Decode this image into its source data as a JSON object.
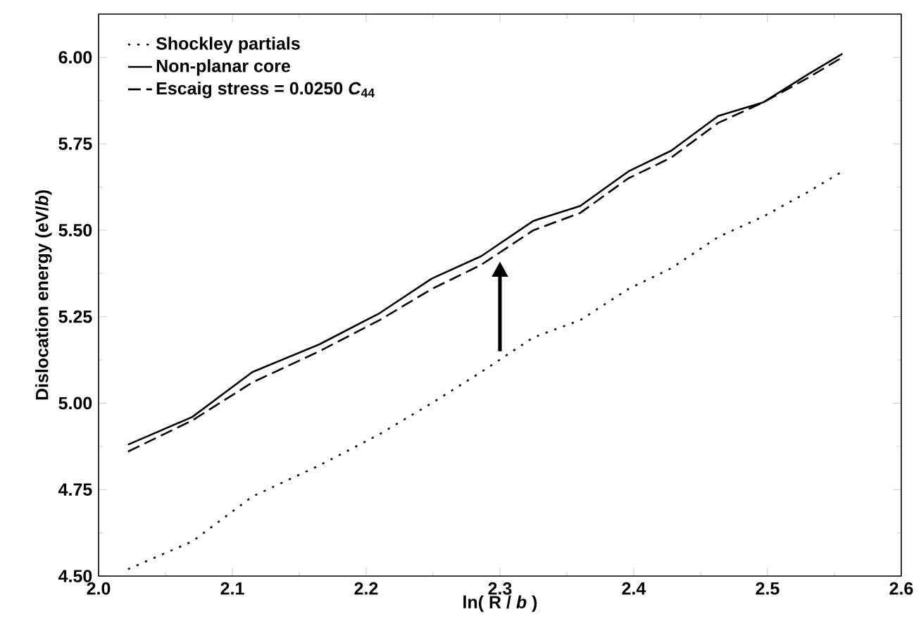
{
  "chart_data": {
    "type": "line",
    "xlabel": "ln( R / *b* )",
    "ylabel": "Dislocation energy (eV/*b*)",
    "x": [
      2.022,
      2.07,
      2.115,
      2.165,
      2.21,
      2.249,
      2.286,
      2.325,
      2.36,
      2.396,
      2.428,
      2.463,
      2.497,
      2.53,
      2.556
    ],
    "series": [
      {
        "name": "Shockley partials",
        "color": "#000000",
        "line_style": "dotted",
        "values": [
          4.52,
          4.6,
          4.73,
          4.82,
          4.91,
          5.0,
          5.09,
          5.19,
          5.24,
          5.33,
          5.39,
          5.48,
          5.54,
          5.61,
          5.67
        ]
      },
      {
        "name": "Non-planar core",
        "color": "#000000",
        "line_style": "solid",
        "values": [
          4.88,
          4.96,
          5.09,
          5.17,
          5.26,
          5.36,
          5.425,
          5.527,
          5.57,
          5.67,
          5.73,
          5.83,
          5.87,
          5.95,
          6.01
        ]
      },
      {
        "name": "Escaig stress = 0.0250 *C*$_{44}$",
        "color": "#000000",
        "line_style": "dashed",
        "values": [
          4.86,
          4.95,
          5.06,
          5.15,
          5.24,
          5.33,
          5.4,
          5.5,
          5.55,
          5.65,
          5.71,
          5.81,
          5.87,
          5.94,
          6.0
        ]
      }
    ],
    "xlim": [
      2.0,
      2.6
    ],
    "ylim": [
      4.5,
      6.125
    ],
    "xticks": [
      {
        "value": 2.0,
        "label": "2.0"
      },
      {
        "value": 2.1,
        "label": "2.1"
      },
      {
        "value": 2.2,
        "label": "2.2"
      },
      {
        "value": 2.3,
        "label": "2.3"
      },
      {
        "value": 2.4,
        "label": "2.4"
      },
      {
        "value": 2.5,
        "label": "2.5"
      },
      {
        "value": 2.6,
        "label": "2.6"
      }
    ],
    "yticks": [
      {
        "value": 4.5,
        "label": "4.50"
      },
      {
        "value": 4.75,
        "label": "4.75"
      },
      {
        "value": 5.0,
        "label": "5.00"
      },
      {
        "value": 5.25,
        "label": "5.25"
      },
      {
        "value": 5.5,
        "label": "5.50"
      },
      {
        "value": 5.75,
        "label": "5.75"
      },
      {
        "value": 6.0,
        "label": "6.00"
      }
    ],
    "legend": "top left",
    "grid": false,
    "marker": "none"
  }
}
